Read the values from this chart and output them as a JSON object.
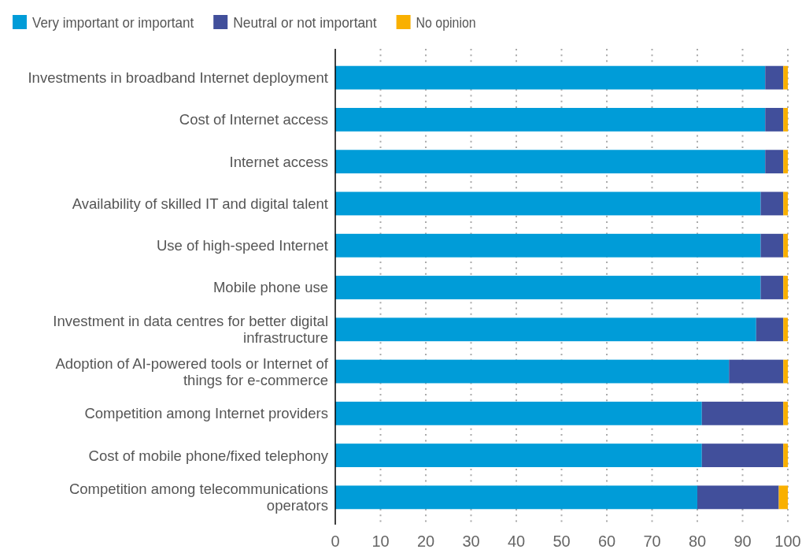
{
  "chart_data": {
    "type": "bar",
    "orientation": "horizontal",
    "stacked": true,
    "categories": [
      "Investments in broadband Internet deployment",
      "Cost of Internet access",
      "Internet access",
      "Availability of skilled IT and digital talent",
      "Use of high-speed Internet",
      "Mobile phone use",
      "Investment in data centres for better digital infrastructure",
      "Adoption of AI-powered tools or Internet of things for e-commerce",
      "Competition among Internet providers",
      "Cost of mobile phone/fixed telephony",
      "Competition among telecommunications operators"
    ],
    "series": [
      {
        "name": "Very important or important",
        "color": "#009cd8",
        "values": [
          95,
          95,
          95,
          94,
          94,
          94,
          93,
          87,
          81,
          81,
          80
        ]
      },
      {
        "name": "Neutral or not important",
        "color": "#414f9b",
        "values": [
          4,
          4,
          4,
          5,
          5,
          5,
          6,
          12,
          18,
          18,
          18
        ]
      },
      {
        "name": "No opinion",
        "color": "#f9b000",
        "values": [
          1,
          1,
          1,
          1,
          1,
          1,
          1,
          1,
          1,
          1,
          2
        ]
      }
    ],
    "xlim": [
      0,
      100
    ],
    "xticks": [
      0,
      10,
      20,
      30,
      40,
      50,
      60,
      70,
      80,
      90,
      100
    ],
    "grid": "x",
    "legend": "top left"
  }
}
